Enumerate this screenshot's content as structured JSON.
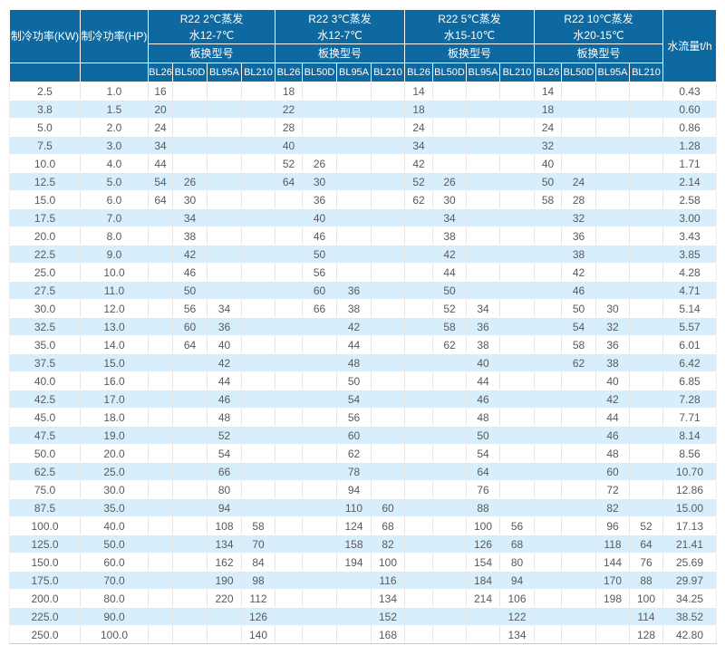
{
  "colors": {
    "header_bg": "#0e69a0",
    "header_text": "#ffffff",
    "row_bg": "#ffffff",
    "row_alt_bg": "#d7effc",
    "cell_text": "#58595b"
  },
  "table": {
    "header": {
      "col_kw": "制冷功率(KW)",
      "col_hp": "制冷功率(HP)",
      "col_flow": "水流量t/h",
      "groups": [
        {
          "title": "R22 2℃蒸发",
          "subtitle": "水12-7℃",
          "model_label": "板换型号",
          "models": [
            "BL26",
            "BL50D",
            "BL95A",
            "BL210"
          ]
        },
        {
          "title": "R22 3℃蒸发",
          "subtitle": "水12-7℃",
          "model_label": "板换型号",
          "models": [
            "BL26",
            "BL50D",
            "BL95A",
            "BL210"
          ]
        },
        {
          "title": "R22 5℃蒸发",
          "subtitle": "水15-10℃",
          "model_label": "板换型号",
          "models": [
            "BL26",
            "BL50D",
            "BL95A",
            "BL210"
          ]
        },
        {
          "title": "R22 10℃蒸发",
          "subtitle": "水20-15℃",
          "model_label": "板换型号",
          "models": [
            "BL26",
            "BL50D",
            "BL95A",
            "BL210"
          ]
        }
      ]
    },
    "rows": [
      [
        "2.5",
        "1.0",
        "16",
        "",
        "",
        "",
        "18",
        "",
        "",
        "",
        "14",
        "",
        "",
        "",
        "14",
        "",
        "",
        "",
        "0.43"
      ],
      [
        "3.8",
        "1.5",
        "20",
        "",
        "",
        "",
        "22",
        "",
        "",
        "",
        "18",
        "",
        "",
        "",
        "18",
        "",
        "",
        "",
        "0.60"
      ],
      [
        "5.0",
        "2.0",
        "24",
        "",
        "",
        "",
        "28",
        "",
        "",
        "",
        "24",
        "",
        "",
        "",
        "24",
        "",
        "",
        "",
        "0.86"
      ],
      [
        "7.5",
        "3.0",
        "34",
        "",
        "",
        "",
        "40",
        "",
        "",
        "",
        "34",
        "",
        "",
        "",
        "32",
        "",
        "",
        "",
        "1.28"
      ],
      [
        "10.0",
        "4.0",
        "44",
        "",
        "",
        "",
        "52",
        "26",
        "",
        "",
        "42",
        "",
        "",
        "",
        "40",
        "",
        "",
        "",
        "1.71"
      ],
      [
        "12.5",
        "5.0",
        "54",
        "26",
        "",
        "",
        "64",
        "30",
        "",
        "",
        "52",
        "26",
        "",
        "",
        "50",
        "24",
        "",
        "",
        "2.14"
      ],
      [
        "15.0",
        "6.0",
        "64",
        "30",
        "",
        "",
        "",
        "36",
        "",
        "",
        "62",
        "30",
        "",
        "",
        "58",
        "28",
        "",
        "",
        "2.58"
      ],
      [
        "17.5",
        "7.0",
        "",
        "34",
        "",
        "",
        "",
        "40",
        "",
        "",
        "",
        "34",
        "",
        "",
        "",
        "32",
        "",
        "",
        "3.00"
      ],
      [
        "20.0",
        "8.0",
        "",
        "38",
        "",
        "",
        "",
        "46",
        "",
        "",
        "",
        "38",
        "",
        "",
        "",
        "36",
        "",
        "",
        "3.43"
      ],
      [
        "22.5",
        "9.0",
        "",
        "42",
        "",
        "",
        "",
        "50",
        "",
        "",
        "",
        "42",
        "",
        "",
        "",
        "38",
        "",
        "",
        "3.85"
      ],
      [
        "25.0",
        "10.0",
        "",
        "46",
        "",
        "",
        "",
        "56",
        "",
        "",
        "",
        "44",
        "",
        "",
        "",
        "42",
        "",
        "",
        "4.28"
      ],
      [
        "27.5",
        "11.0",
        "",
        "50",
        "",
        "",
        "",
        "60",
        "36",
        "",
        "",
        "50",
        "",
        "",
        "",
        "46",
        "",
        "",
        "4.71"
      ],
      [
        "30.0",
        "12.0",
        "",
        "56",
        "34",
        "",
        "",
        "66",
        "38",
        "",
        "",
        "52",
        "34",
        "",
        "",
        "50",
        "30",
        "",
        "5.14"
      ],
      [
        "32.5",
        "13.0",
        "",
        "60",
        "36",
        "",
        "",
        "",
        "42",
        "",
        "",
        "58",
        "36",
        "",
        "",
        "54",
        "32",
        "",
        "5.57"
      ],
      [
        "35.0",
        "14.0",
        "",
        "64",
        "40",
        "",
        "",
        "",
        "44",
        "",
        "",
        "62",
        "38",
        "",
        "",
        "58",
        "36",
        "",
        "6.01"
      ],
      [
        "37.5",
        "15.0",
        "",
        "",
        "42",
        "",
        "",
        "",
        "48",
        "",
        "",
        "",
        "40",
        "",
        "",
        "62",
        "38",
        "",
        "6.42"
      ],
      [
        "40.0",
        "16.0",
        "",
        "",
        "44",
        "",
        "",
        "",
        "50",
        "",
        "",
        "",
        "44",
        "",
        "",
        "",
        "40",
        "",
        "6.85"
      ],
      [
        "42.5",
        "17.0",
        "",
        "",
        "46",
        "",
        "",
        "",
        "54",
        "",
        "",
        "",
        "46",
        "",
        "",
        "",
        "42",
        "",
        "7.28"
      ],
      [
        "45.0",
        "18.0",
        "",
        "",
        "48",
        "",
        "",
        "",
        "56",
        "",
        "",
        "",
        "48",
        "",
        "",
        "",
        "44",
        "",
        "7.71"
      ],
      [
        "47.5",
        "19.0",
        "",
        "",
        "52",
        "",
        "",
        "",
        "60",
        "",
        "",
        "",
        "50",
        "",
        "",
        "",
        "46",
        "",
        "8.14"
      ],
      [
        "50.0",
        "20.0",
        "",
        "",
        "54",
        "",
        "",
        "",
        "62",
        "",
        "",
        "",
        "54",
        "",
        "",
        "",
        "48",
        "",
        "8.56"
      ],
      [
        "62.5",
        "25.0",
        "",
        "",
        "66",
        "",
        "",
        "",
        "78",
        "",
        "",
        "",
        "64",
        "",
        "",
        "",
        "60",
        "",
        "10.70"
      ],
      [
        "75.0",
        "30.0",
        "",
        "",
        "80",
        "",
        "",
        "",
        "94",
        "",
        "",
        "",
        "76",
        "",
        "",
        "",
        "72",
        "",
        "12.86"
      ],
      [
        "87.5",
        "35.0",
        "",
        "",
        "94",
        "",
        "",
        "",
        "110",
        "60",
        "",
        "",
        "88",
        "",
        "",
        "",
        "82",
        "",
        "15.00"
      ],
      [
        "100.0",
        "40.0",
        "",
        "",
        "108",
        "58",
        "",
        "",
        "124",
        "68",
        "",
        "",
        "100",
        "56",
        "",
        "",
        "96",
        "52",
        "17.13"
      ],
      [
        "125.0",
        "50.0",
        "",
        "",
        "134",
        "70",
        "",
        "",
        "158",
        "82",
        "",
        "",
        "126",
        "68",
        "",
        "",
        "118",
        "64",
        "21.41"
      ],
      [
        "150.0",
        "60.0",
        "",
        "",
        "162",
        "84",
        "",
        "",
        "194",
        "100",
        "",
        "",
        "154",
        "80",
        "",
        "",
        "144",
        "76",
        "25.69"
      ],
      [
        "175.0",
        "70.0",
        "",
        "",
        "190",
        "98",
        "",
        "",
        "",
        "116",
        "",
        "",
        "184",
        "94",
        "",
        "",
        "170",
        "88",
        "29.97"
      ],
      [
        "200.0",
        "80.0",
        "",
        "",
        "220",
        "112",
        "",
        "",
        "",
        "134",
        "",
        "",
        "214",
        "106",
        "",
        "",
        "198",
        "100",
        "34.25"
      ],
      [
        "225.0",
        "90.0",
        "",
        "",
        "",
        "126",
        "",
        "",
        "",
        "152",
        "",
        "",
        "",
        "122",
        "",
        "",
        "",
        "114",
        "38.52"
      ],
      [
        "250.0",
        "100.0",
        "",
        "",
        "",
        "140",
        "",
        "",
        "",
        "168",
        "",
        "",
        "",
        "134",
        "",
        "",
        "",
        "128",
        "42.80"
      ]
    ]
  }
}
